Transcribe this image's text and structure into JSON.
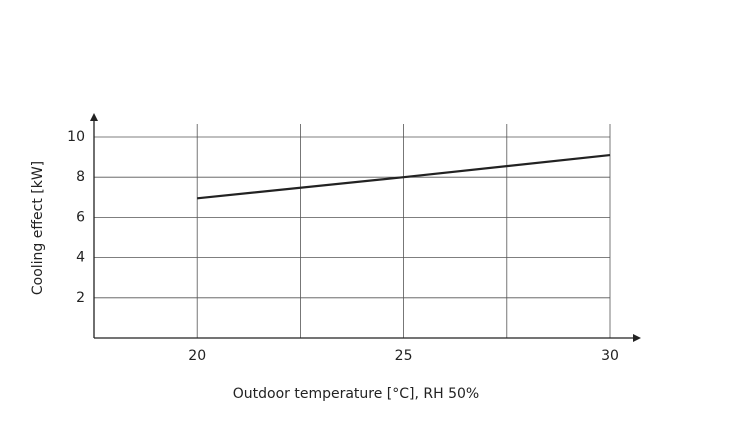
{
  "chart_data": {
    "type": "line",
    "xlabel": "Outdoor temperature [°C], RH 50%",
    "ylabel": "Cooling effect [kW]",
    "x": [
      20,
      25,
      30
    ],
    "series": [
      {
        "color": "#222222",
        "values": [
          6.95,
          8,
          9.1
        ]
      }
    ],
    "xlim": [
      17.5,
      30
    ],
    "xticks": [
      20,
      25,
      30
    ],
    "xminor": [
      22.5,
      27.5
    ],
    "ylim": [
      0,
      10
    ],
    "yticks": [
      2,
      4,
      6,
      8,
      10
    ],
    "grid": true
  }
}
